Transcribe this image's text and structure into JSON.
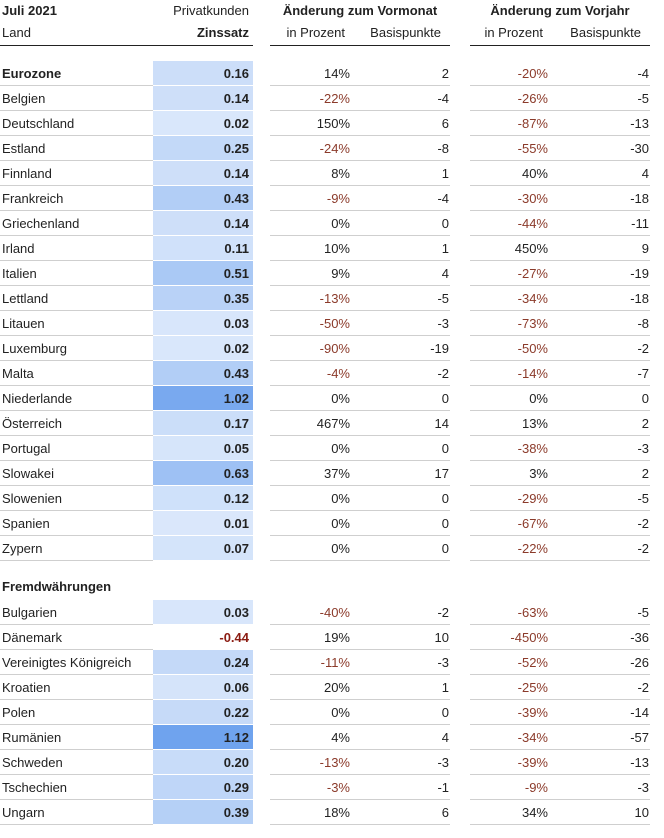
{
  "header": {
    "period": "Juli 2021",
    "customer_type": "Privatkunden",
    "land_label": "Land",
    "rate_label": "Zinssatz",
    "group_month": "Änderung zum Vormonat",
    "group_year": "Änderung zum Vorjahr",
    "pct_label": "in Prozent",
    "bp_label": "Basispunkte"
  },
  "colors": {
    "negative_text": "#8b3a2a",
    "scale_low": "#dbe8fb",
    "scale_high": "#6fa3ee"
  },
  "sections": [
    {
      "title": "Eurozone",
      "rows": [
        {
          "land": "Eurozone",
          "rate": "0.16",
          "rv": 0.16,
          "mp": "14%",
          "mb": "2",
          "yp": "-20%",
          "yb": "-4",
          "bold": true
        },
        {
          "land": "Belgien",
          "rate": "0.14",
          "rv": 0.14,
          "mp": "-22%",
          "mb": "-4",
          "yp": "-26%",
          "yb": "-5"
        },
        {
          "land": "Deutschland",
          "rate": "0.02",
          "rv": 0.02,
          "mp": "150%",
          "mb": "6",
          "yp": "-87%",
          "yb": "-13"
        },
        {
          "land": "Estland",
          "rate": "0.25",
          "rv": 0.25,
          "mp": "-24%",
          "mb": "-8",
          "yp": "-55%",
          "yb": "-30"
        },
        {
          "land": "Finnland",
          "rate": "0.14",
          "rv": 0.14,
          "mp": "8%",
          "mb": "1",
          "yp": "40%",
          "yb": "4"
        },
        {
          "land": "Frankreich",
          "rate": "0.43",
          "rv": 0.43,
          "mp": "-9%",
          "mb": "-4",
          "yp": "-30%",
          "yb": "-18"
        },
        {
          "land": "Griechenland",
          "rate": "0.14",
          "rv": 0.14,
          "mp": "0%",
          "mb": "0",
          "yp": "-44%",
          "yb": "-11"
        },
        {
          "land": "Irland",
          "rate": "0.11",
          "rv": 0.11,
          "mp": "10%",
          "mb": "1",
          "yp": "450%",
          "yb": "9"
        },
        {
          "land": "Italien",
          "rate": "0.51",
          "rv": 0.51,
          "mp": "9%",
          "mb": "4",
          "yp": "-27%",
          "yb": "-19"
        },
        {
          "land": "Lettland",
          "rate": "0.35",
          "rv": 0.35,
          "mp": "-13%",
          "mb": "-5",
          "yp": "-34%",
          "yb": "-18"
        },
        {
          "land": "Litauen",
          "rate": "0.03",
          "rv": 0.03,
          "mp": "-50%",
          "mb": "-3",
          "yp": "-73%",
          "yb": "-8"
        },
        {
          "land": "Luxemburg",
          "rate": "0.02",
          "rv": 0.02,
          "mp": "-90%",
          "mb": "-19",
          "yp": "-50%",
          "yb": "-2"
        },
        {
          "land": "Malta",
          "rate": "0.43",
          "rv": 0.43,
          "mp": "-4%",
          "mb": "-2",
          "yp": "-14%",
          "yb": "-7"
        },
        {
          "land": "Niederlande",
          "rate": "1.02",
          "rv": 1.02,
          "mp": "0%",
          "mb": "0",
          "yp": "0%",
          "yb": "0"
        },
        {
          "land": "Österreich",
          "rate": "0.17",
          "rv": 0.17,
          "mp": "467%",
          "mb": "14",
          "yp": "13%",
          "yb": "2"
        },
        {
          "land": "Portugal",
          "rate": "0.05",
          "rv": 0.05,
          "mp": "0%",
          "mb": "0",
          "yp": "-38%",
          "yb": "-3"
        },
        {
          "land": "Slowakei",
          "rate": "0.63",
          "rv": 0.63,
          "mp": "37%",
          "mb": "17",
          "yp": "3%",
          "yb": "2"
        },
        {
          "land": "Slowenien",
          "rate": "0.12",
          "rv": 0.12,
          "mp": "0%",
          "mb": "0",
          "yp": "-29%",
          "yb": "-5"
        },
        {
          "land": "Spanien",
          "rate": "0.01",
          "rv": 0.01,
          "mp": "0%",
          "mb": "0",
          "yp": "-67%",
          "yb": "-2"
        },
        {
          "land": "Zypern",
          "rate": "0.07",
          "rv": 0.07,
          "mp": "0%",
          "mb": "0",
          "yp": "-22%",
          "yb": "-2"
        }
      ]
    },
    {
      "title": "Fremdwährungen",
      "rows": [
        {
          "land": "Bulgarien",
          "rate": "0.03",
          "rv": 0.03,
          "mp": "-40%",
          "mb": "-2",
          "yp": "-63%",
          "yb": "-5"
        },
        {
          "land": "Dänemark",
          "rate": "-0.44",
          "rv": -0.44,
          "mp": "19%",
          "mb": "10",
          "yp": "-450%",
          "yb": "-36"
        },
        {
          "land": "Vereinigtes Königreich",
          "rate": "0.24",
          "rv": 0.24,
          "mp": "-11%",
          "mb": "-3",
          "yp": "-52%",
          "yb": "-26"
        },
        {
          "land": "Kroatien",
          "rate": "0.06",
          "rv": 0.06,
          "mp": "20%",
          "mb": "1",
          "yp": "-25%",
          "yb": "-2"
        },
        {
          "land": "Polen",
          "rate": "0.22",
          "rv": 0.22,
          "mp": "0%",
          "mb": "0",
          "yp": "-39%",
          "yb": "-14"
        },
        {
          "land": "Rumänien",
          "rate": "1.12",
          "rv": 1.12,
          "mp": "4%",
          "mb": "4",
          "yp": "-34%",
          "yb": "-57"
        },
        {
          "land": "Schweden",
          "rate": "0.20",
          "rv": 0.2,
          "mp": "-13%",
          "mb": "-3",
          "yp": "-39%",
          "yb": "-13"
        },
        {
          "land": "Tschechien",
          "rate": "0.29",
          "rv": 0.29,
          "mp": "-3%",
          "mb": "-1",
          "yp": "-9%",
          "yb": "-3"
        },
        {
          "land": "Ungarn",
          "rate": "0.39",
          "rv": 0.39,
          "mp": "18%",
          "mb": "6",
          "yp": "34%",
          "yb": "10"
        }
      ]
    }
  ]
}
